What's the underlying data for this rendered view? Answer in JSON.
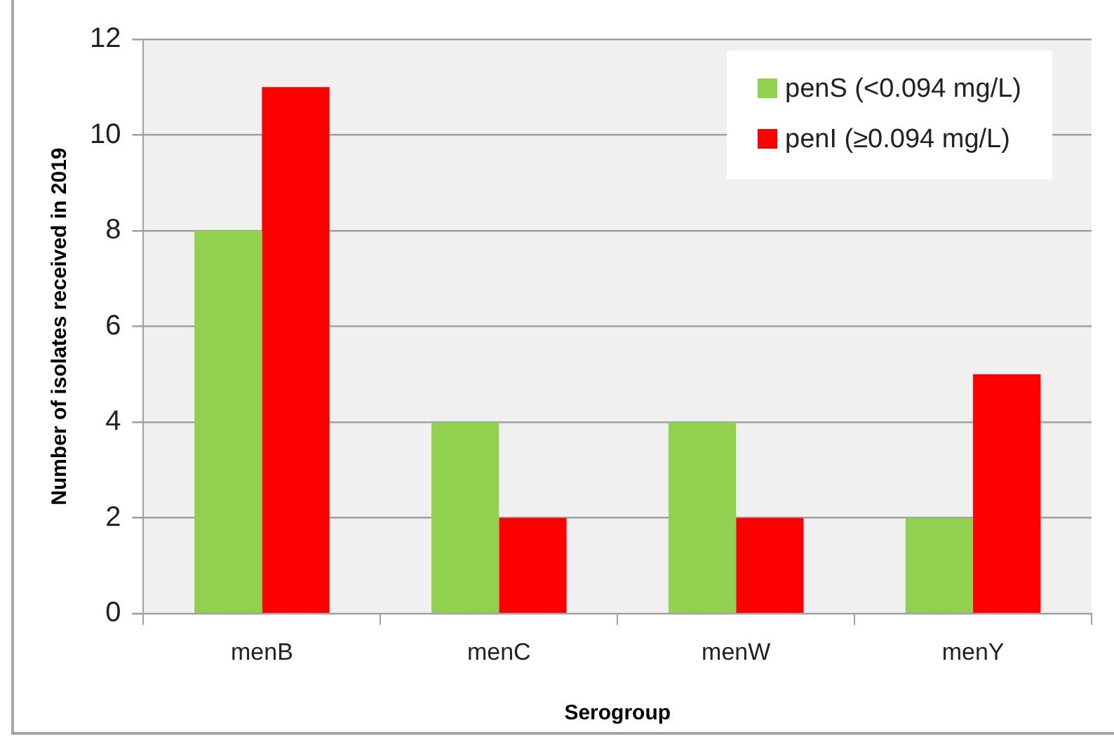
{
  "chart_data": {
    "type": "bar",
    "xlabel": "Serogroup",
    "ylabel": "Number of isolates received in 2019",
    "categories": [
      "menB",
      "menC",
      "menW",
      "menY"
    ],
    "series": [
      {
        "name": "penS (<0.094 mg/L)",
        "color": "#92d050",
        "values": [
          8,
          4,
          4,
          2
        ]
      },
      {
        "name": "penI (≥0.094 mg/L)",
        "color": "#ff0000",
        "values": [
          11,
          2,
          2,
          5
        ]
      }
    ],
    "ylim": [
      0,
      12
    ],
    "yticks": [
      0,
      2,
      4,
      6,
      8,
      10,
      12
    ],
    "grid": "y",
    "legend": "top right"
  }
}
